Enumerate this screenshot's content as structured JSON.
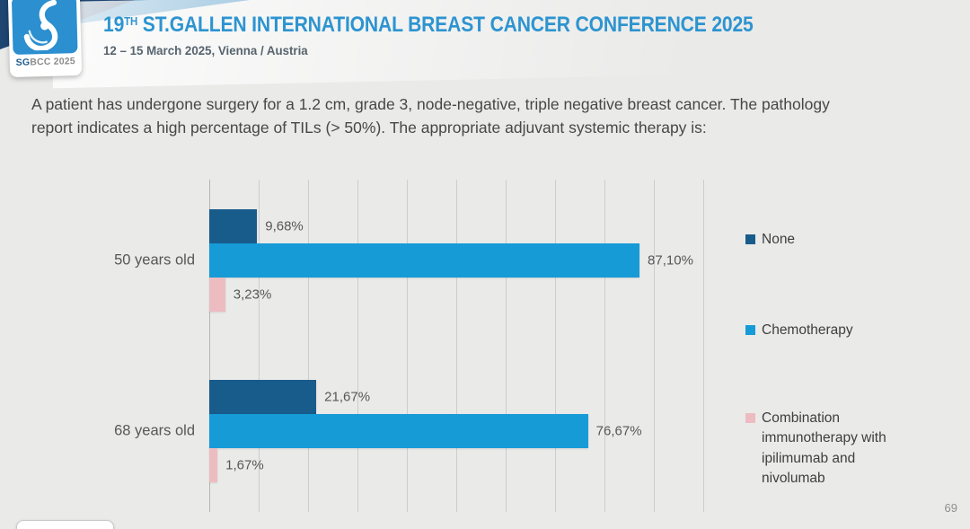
{
  "header": {
    "logo": {
      "badge_prefix": "SG",
      "badge_suffix": "BCC 2025"
    },
    "title_prefix": "19",
    "title_sup": "TH",
    "title_rest": " ST.GALLEN INTERNATIONAL BREAST CANCER CONFERENCE 2025",
    "subtitle": "12 – 15 March 2025, Vienna / Austria"
  },
  "question": "A patient has undergone surgery for a 1.2 cm, grade 3, node-negative, triple negative breast cancer. The pathology report indicates a high percentage of TILs (> 50%). The appropriate adjuvant systemic therapy is:",
  "chart_data": {
    "type": "bar",
    "orientation": "horizontal",
    "title": "",
    "categories": [
      "50 years old",
      "68 years old"
    ],
    "series": [
      {
        "name": "None",
        "color": "#185c8c",
        "values": [
          9.68,
          21.67
        ],
        "labels": [
          "9,68%",
          "21,67%"
        ]
      },
      {
        "name": "Chemotherapy",
        "color": "#169bd7",
        "values": [
          87.1,
          76.67
        ],
        "labels": [
          "87,10%",
          "76,67%"
        ]
      },
      {
        "name": "Combination immunotherapy with ipilimumab and nivolumab",
        "color": "#ecbcc1",
        "values": [
          3.23,
          1.67
        ],
        "labels": [
          "3,23%",
          "1,67%"
        ]
      }
    ],
    "xlim": [
      0,
      100
    ],
    "gridline_interval": 10,
    "grid": true,
    "legend_position": "right",
    "value_label_format": "comma-decimal-percent"
  },
  "footer": {
    "page_number": "69"
  }
}
